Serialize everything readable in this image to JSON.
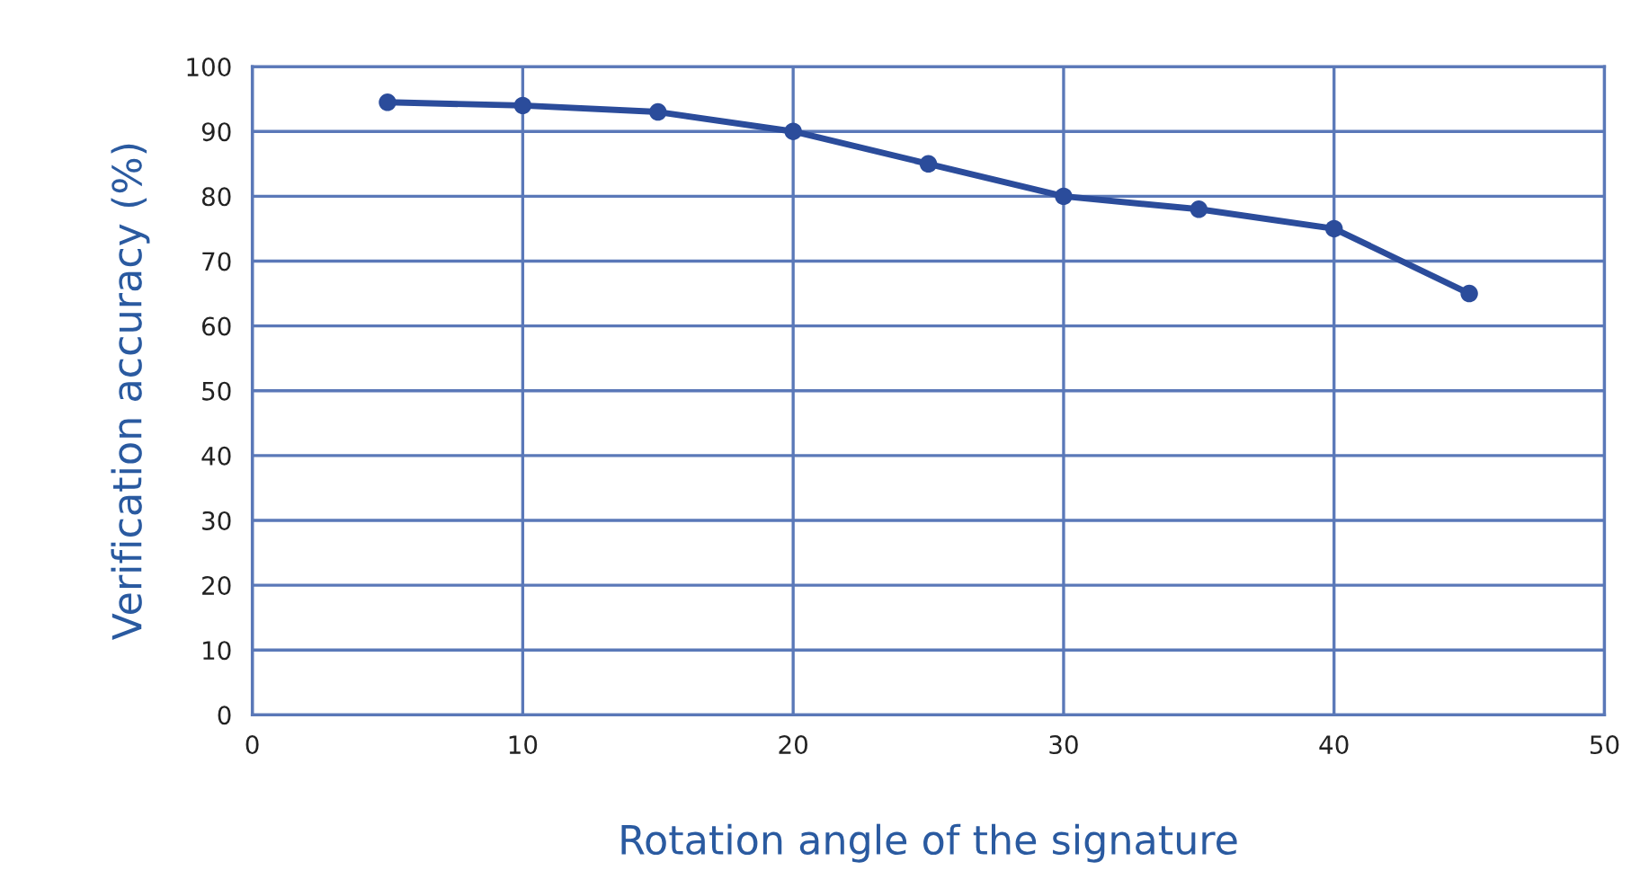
{
  "chart_data": {
    "type": "line",
    "xlabel": "Rotation angle of the signature",
    "ylabel": "Verification accuracy (%)",
    "x": [
      5,
      10,
      15,
      20,
      25,
      30,
      35,
      40,
      45
    ],
    "series": [
      {
        "color": "#2b4c9b",
        "values": [
          94.5,
          94,
          93,
          90,
          85,
          80,
          78,
          75,
          65
        ]
      }
    ],
    "xlim": [
      0,
      50
    ],
    "xticks": [
      0,
      10,
      20,
      30,
      40,
      50
    ],
    "ylim": [
      0,
      100
    ],
    "yticks": [
      0,
      10,
      20,
      30,
      40,
      50,
      60,
      70,
      80,
      90,
      100
    ],
    "grid": true,
    "marker": "circle",
    "line_style": "solid"
  }
}
